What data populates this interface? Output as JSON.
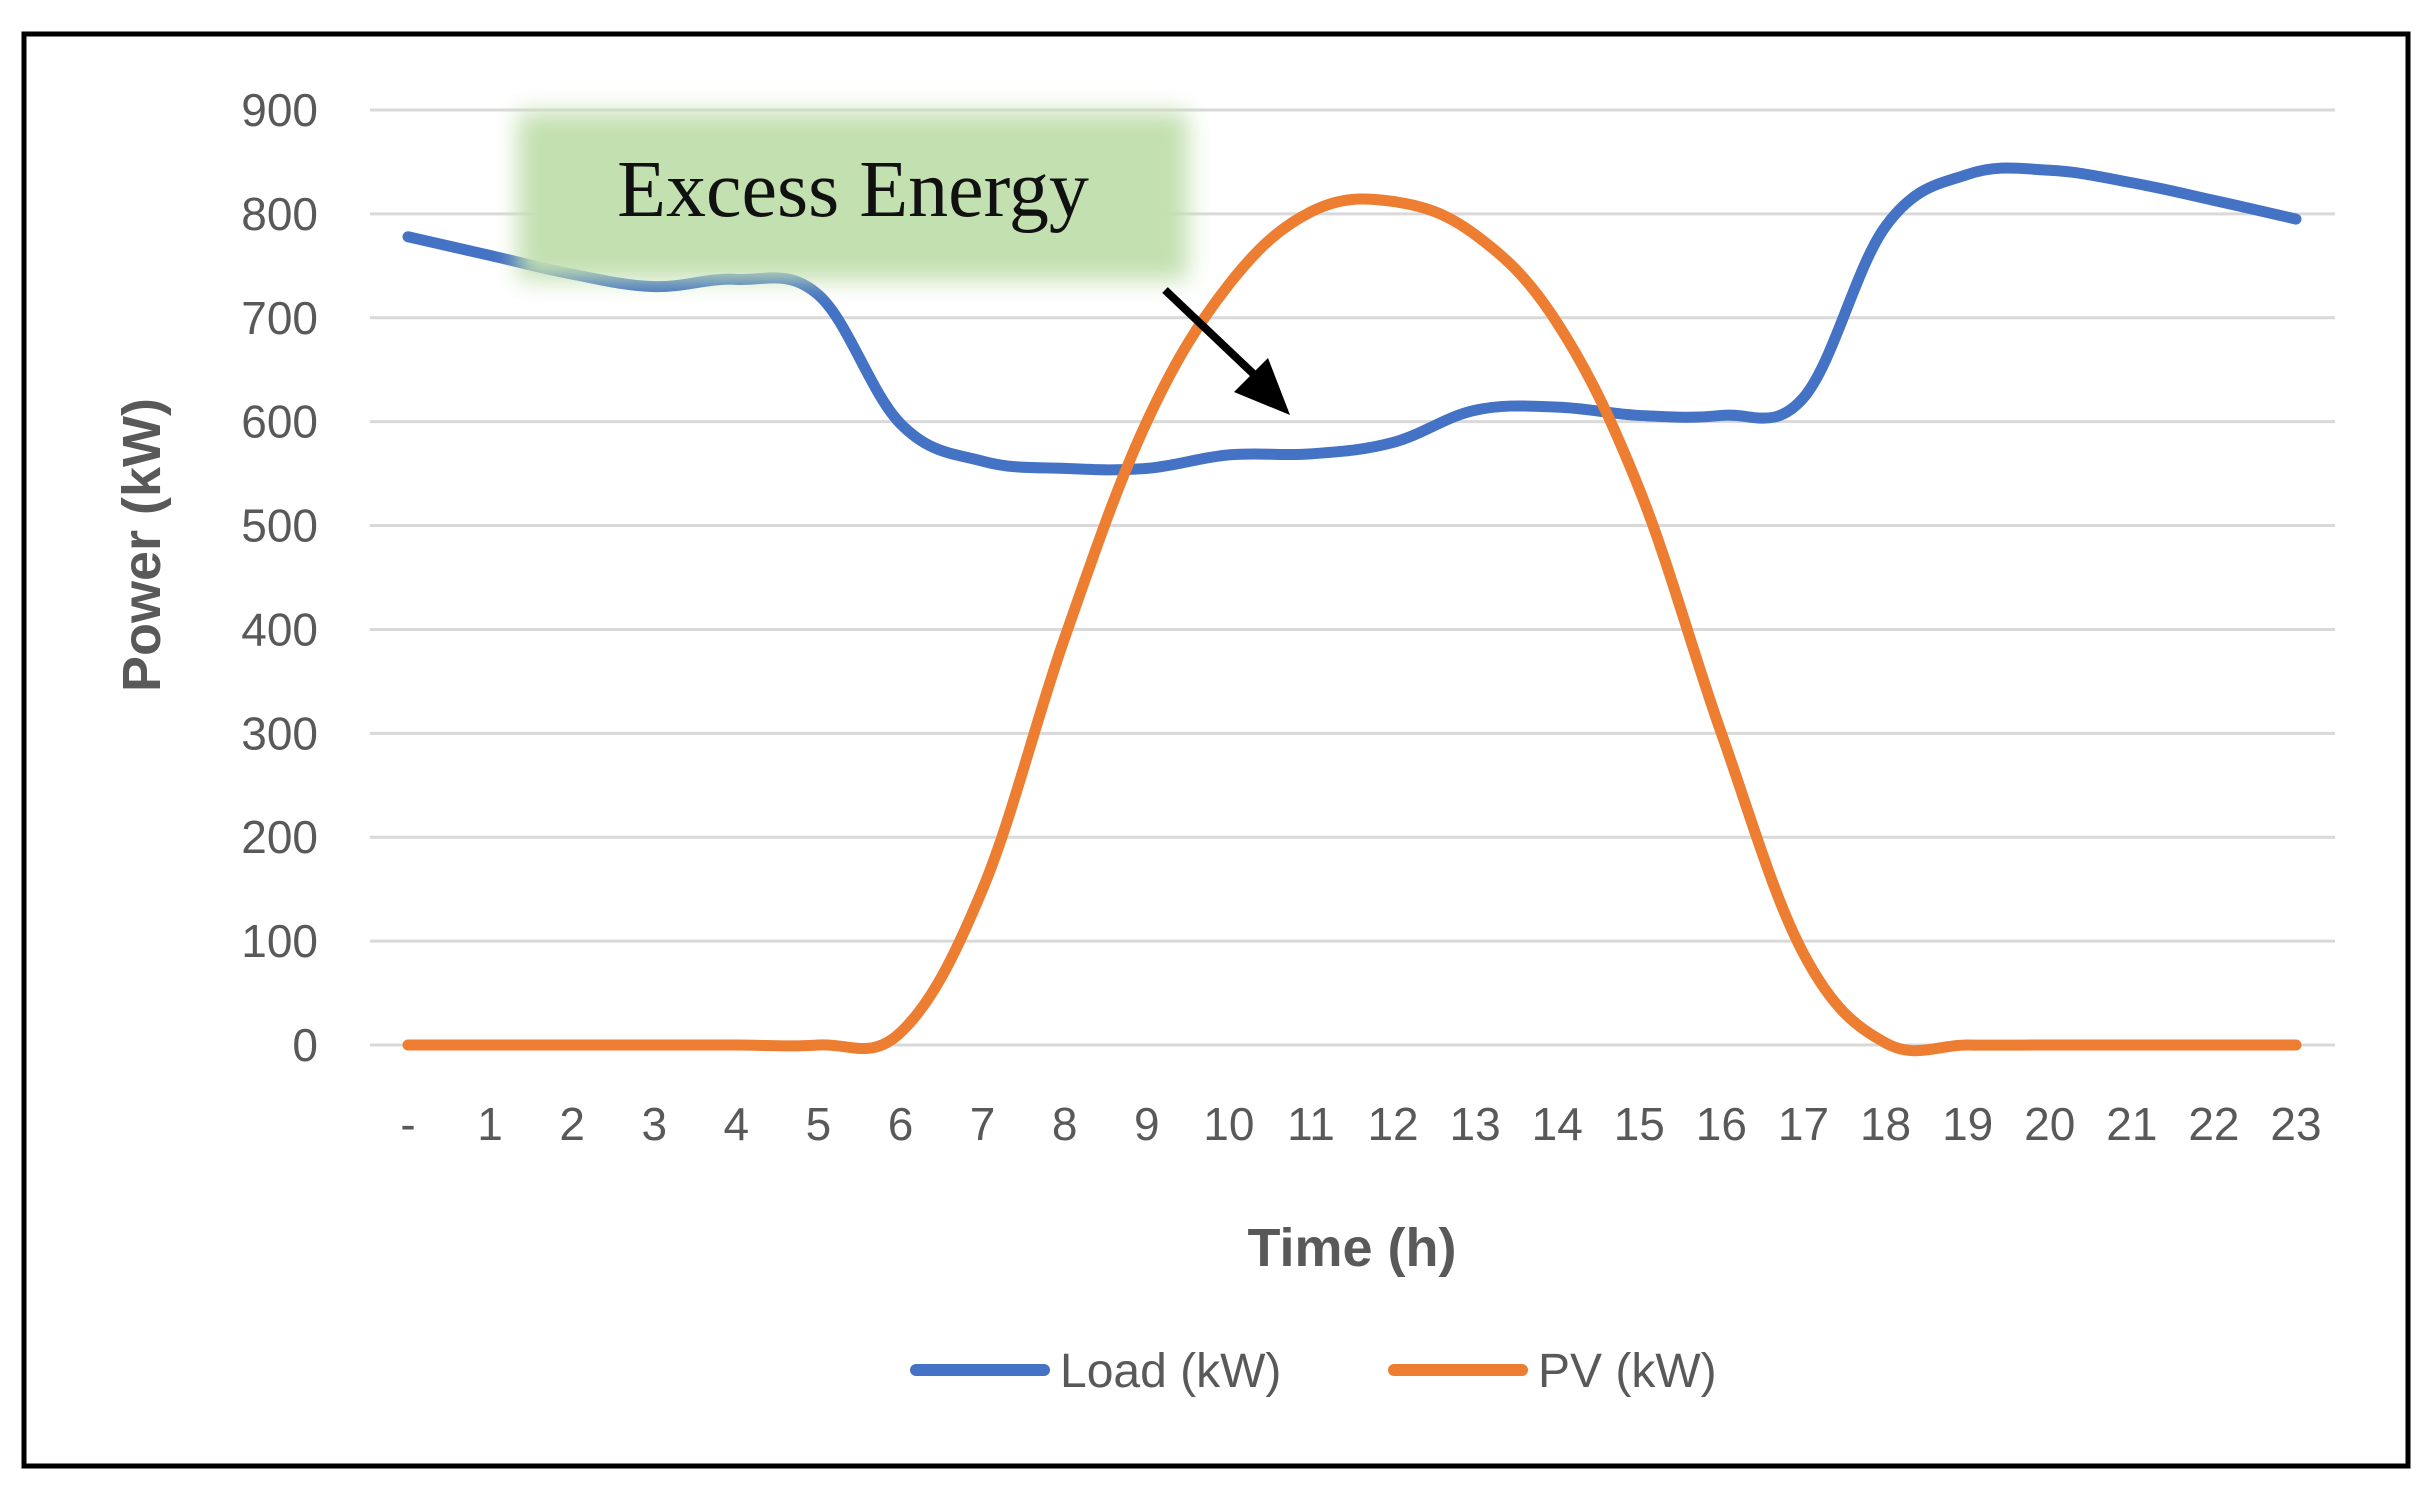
{
  "chart_data": {
    "type": "line",
    "title": "",
    "xlabel": "Time (h)",
    "ylabel": "Power (kW)",
    "categories": [
      "-",
      "1",
      "2",
      "3",
      "4",
      "5",
      "6",
      "7",
      "8",
      "9",
      "10",
      "11",
      "12",
      "13",
      "14",
      "15",
      "16",
      "17",
      "18",
      "19",
      "20",
      "21",
      "22",
      "23"
    ],
    "ylim": [
      0,
      900
    ],
    "yticks": [
      "0",
      "100",
      "200",
      "300",
      "400",
      "500",
      "600",
      "700",
      "800",
      "900"
    ],
    "grid": true,
    "legend_position": "bottom",
    "series": [
      {
        "name": "Load (kW)",
        "color": "#4472C4",
        "values": [
          778,
          760,
          742,
          730,
          737,
          722,
          598,
          562,
          555,
          555,
          568,
          569,
          580,
          611,
          614,
          606,
          606,
          623,
          788,
          838,
          842,
          830,
          813,
          795
        ]
      },
      {
        "name": "PV (kW)",
        "color": "#ED7D31",
        "values": [
          0,
          0,
          0,
          0,
          0,
          0,
          12,
          150,
          392,
          600,
          732,
          802,
          812,
          780,
          695,
          535,
          300,
          88,
          2,
          0,
          0,
          0,
          0,
          0
        ]
      }
    ],
    "annotations": [
      {
        "text": "Excess Energy",
        "points_to_category": "11",
        "points_to_value": 600
      }
    ]
  }
}
